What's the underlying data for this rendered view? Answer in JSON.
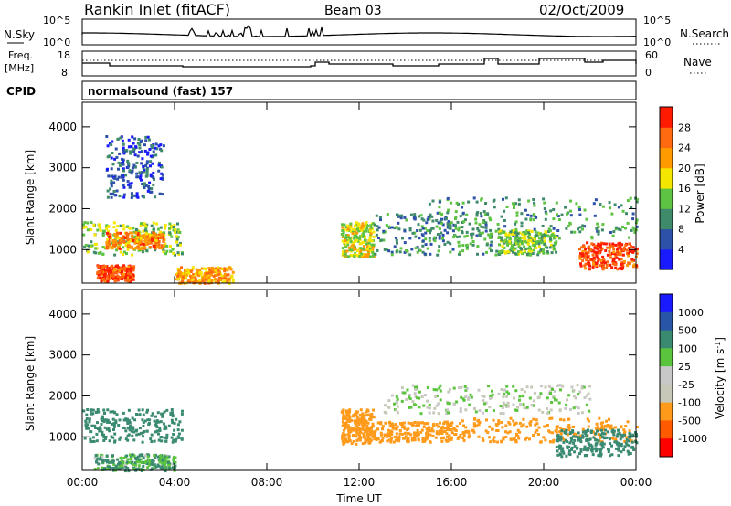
{
  "header": {
    "title": "Rankin Inlet (fitACF)",
    "beam": "Beam 03",
    "date": "02/Oct/2009"
  },
  "noise_panel": {
    "left_label": "N.Sky",
    "right_label": "N.Search",
    "left_ticks": [
      "10^5",
      "10^0"
    ],
    "right_ticks": [
      "10^5",
      "10^0"
    ]
  },
  "freq_panel": {
    "left_label_1": "Freq.",
    "left_label_2": "[MHz]",
    "right_label": "Nave",
    "left_ticks": [
      "18",
      "8"
    ],
    "right_ticks": [
      "60",
      "0"
    ]
  },
  "cpid": {
    "label": "CPID",
    "value": "normalsound (fast) 157"
  },
  "colors": {
    "power_scale": [
      "#1a1aff",
      "#2d50a8",
      "#3f8a6a",
      "#5ec243",
      "#f5e600",
      "#ff9a00",
      "#ff6a10",
      "#ff1a00"
    ],
    "velocity_scale": [
      "#ff0000",
      "#ff5a00",
      "#ff9a1a",
      "#c8c8b8",
      "#c8c8c8",
      "#5ac43c",
      "#3a8a72",
      "#2855a5",
      "#1a1aff"
    ]
  },
  "chart_data": [
    {
      "type": "heatmap",
      "name": "power",
      "xlabel": "Time UT",
      "ylabel": "Slant Range [km]",
      "xlim": [
        0,
        24
      ],
      "ylim": [
        180,
        4600
      ],
      "x_ticks": [
        "00:00",
        "04:00",
        "08:00",
        "12:00",
        "16:00",
        "20:00",
        "00:00"
      ],
      "y_ticks": [
        1000,
        2000,
        3000,
        4000
      ],
      "colorbar": {
        "label": "Power [dB]",
        "levels": [
          4,
          8,
          12,
          16,
          20,
          24,
          28
        ],
        "range": [
          0,
          32
        ]
      },
      "echo_regions": [
        {
          "t": [
            0.0,
            4.3
          ],
          "r": [
            900,
            1700
          ],
          "dB": 15
        },
        {
          "t": [
            1.0,
            3.5
          ],
          "r": [
            1050,
            1450
          ],
          "dB": 24
        },
        {
          "t": [
            0.6,
            2.2
          ],
          "r": [
            250,
            650
          ],
          "dB": 28
        },
        {
          "t": [
            4.0,
            6.5
          ],
          "r": [
            200,
            600
          ],
          "dB": 22
        },
        {
          "t": [
            11.2,
            12.6
          ],
          "r": [
            850,
            1700
          ],
          "dB": 17
        },
        {
          "t": [
            12.6,
            18.0
          ],
          "r": [
            900,
            1900
          ],
          "dB": 10
        },
        {
          "t": [
            15.0,
            24.0
          ],
          "r": [
            1300,
            2300
          ],
          "dB": 11
        },
        {
          "t": [
            18.0,
            20.5
          ],
          "r": [
            900,
            1500
          ],
          "dB": 14
        },
        {
          "t": [
            21.5,
            24.0
          ],
          "r": [
            550,
            1200
          ],
          "dB": 28
        },
        {
          "t": [
            1.0,
            3.5
          ],
          "r": [
            2300,
            3800
          ],
          "dB": 6
        }
      ]
    },
    {
      "type": "heatmap",
      "name": "velocity",
      "xlabel": "Time UT",
      "ylabel": "Slant Range [km]",
      "xlim": [
        0,
        24
      ],
      "ylim": [
        180,
        4600
      ],
      "x_ticks": [
        "00:00",
        "04:00",
        "08:00",
        "12:00",
        "16:00",
        "20:00",
        "00:00"
      ],
      "y_ticks": [
        1000,
        2000,
        3000,
        4000
      ],
      "colorbar": {
        "label": "Velocity [m s^-1]",
        "levels": [
          1000,
          500,
          100,
          25,
          -25,
          -100,
          -500,
          -1000
        ]
      },
      "echo_regions": [
        {
          "t": [
            0.0,
            4.3
          ],
          "r": [
            900,
            1700
          ],
          "v": 300
        },
        {
          "t": [
            0.5,
            4.0
          ],
          "r": [
            200,
            600
          ],
          "v": 120
        },
        {
          "t": [
            11.2,
            12.6
          ],
          "r": [
            850,
            1700
          ],
          "v": -300
        },
        {
          "t": [
            12.6,
            16.0
          ],
          "r": [
            900,
            1400
          ],
          "v": -250
        },
        {
          "t": [
            13.0,
            22.0
          ],
          "r": [
            1600,
            2300
          ],
          "v": 0
        },
        {
          "t": [
            16.0,
            24.0
          ],
          "r": [
            900,
            1500
          ],
          "v": -200
        },
        {
          "t": [
            20.5,
            24.0
          ],
          "r": [
            550,
            1200
          ],
          "v": 300
        }
      ]
    }
  ]
}
